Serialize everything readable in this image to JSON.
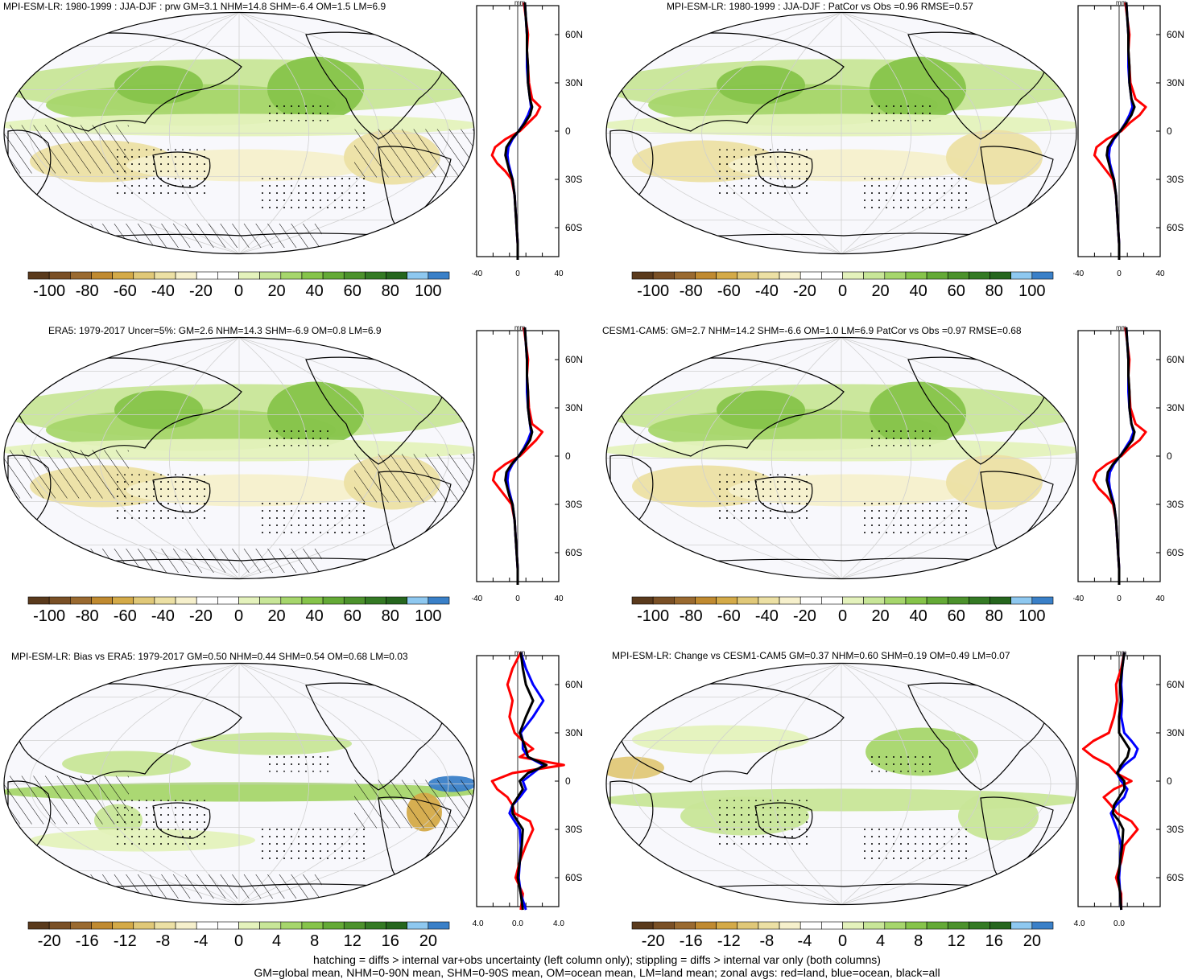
{
  "panels": [
    {
      "title": "MPI-ESM-LR: 1980-1999 : JJA-DJF : prw GM=3.1 NHM=14.8 SHM=-6.4 OM=1.5 LM=6.9",
      "unit": "mm",
      "xticks": [
        "-40",
        "0",
        "40"
      ],
      "xlim": [
        -40,
        40
      ],
      "lat_ticks": [
        "60N",
        "30N",
        "0",
        "30S",
        "60S"
      ],
      "cbar": [
        "-100",
        "-80",
        "-60",
        "-40",
        "-20",
        "0",
        "20",
        "40",
        "60",
        "80",
        "100"
      ]
    },
    {
      "title": "MPI-ESM-LR: 1980-1999 : JJA-DJF : PatCor vs Obs =0.96 RMSE=0.57",
      "unit": "mm",
      "xticks": [
        "-40",
        "0",
        "40"
      ],
      "xlim": [
        -40,
        40
      ],
      "lat_ticks": [
        "60N",
        "30N",
        "0",
        "30S",
        "60S"
      ],
      "cbar": [
        "-100",
        "-80",
        "-60",
        "-40",
        "-20",
        "0",
        "20",
        "40",
        "60",
        "80",
        "100"
      ]
    },
    {
      "title": "ERA5: 1979-2017 Uncer=5%: GM=2.6 NHM=14.3 SHM=-6.9 OM=0.8 LM=6.9",
      "unit": "mm",
      "xticks": [
        "-40",
        "0",
        "40"
      ],
      "xlim": [
        -40,
        40
      ],
      "lat_ticks": [
        "60N",
        "30N",
        "0",
        "30S",
        "60S"
      ],
      "cbar": [
        "-100",
        "-80",
        "-60",
        "-40",
        "-20",
        "0",
        "20",
        "40",
        "60",
        "80",
        "100"
      ]
    },
    {
      "title": "CESM1-CAM5: GM=2.7 NHM=14.2 SHM=-6.6 OM=1.0 LM=6.9 PatCor vs Obs =0.97 RMSE=0.68",
      "unit": "mm",
      "xticks": [
        "-40",
        "0",
        "40"
      ],
      "xlim": [
        -40,
        40
      ],
      "lat_ticks": [
        "60N",
        "30N",
        "0",
        "30S",
        "60S"
      ],
      "cbar": [
        "-100",
        "-80",
        "-60",
        "-40",
        "-20",
        "0",
        "20",
        "40",
        "60",
        "80",
        "100"
      ]
    },
    {
      "title": "MPI-ESM-LR: Bias vs ERA5: 1979-2017 GM=0.50 NHM=0.44 SHM=0.54 OM=0.68 LM=0.03",
      "unit": "mm",
      "xticks": [
        "-4.0",
        "0.0",
        "4.0"
      ],
      "xlim": [
        -4,
        4
      ],
      "lat_ticks": [
        "60N",
        "30N",
        "0",
        "30S",
        "60S"
      ],
      "cbar": [
        "-20",
        "-16",
        "-12",
        "-8",
        "-4",
        "0",
        "4",
        "8",
        "12",
        "16",
        "20"
      ]
    },
    {
      "title": "MPI-ESM-LR: Change vs CESM1-CAM5 GM=0.37 NHM=0.60 SHM=0.19 OM=0.49 LM=0.07",
      "unit": "mm",
      "xticks": [
        "-4.0",
        "0.0"
      ],
      "xlim": [
        -4,
        4
      ],
      "lat_ticks": [
        "60N",
        "30N",
        "0",
        "30S",
        "60S"
      ],
      "cbar": [
        "-20",
        "-16",
        "-12",
        "-8",
        "-4",
        "0",
        "4",
        "8",
        "12",
        "16",
        "20"
      ]
    }
  ],
  "colors": {
    "palette": [
      "#5a3a1c",
      "#7a5026",
      "#9a6a30",
      "#c08a30",
      "#d4aa48",
      "#e0c878",
      "#ece0a4",
      "#f6f0cc",
      "#ffffff",
      "#ffffff",
      "#e4f2bc",
      "#c8e698",
      "#a6d66c",
      "#86c44a",
      "#64aa36",
      "#4c922c",
      "#347a24",
      "#26661e",
      "#8ec8f0",
      "#3a80c8"
    ],
    "land_line": "#000000",
    "zonal_land": "#ff0000",
    "zonal_ocean": "#0000ff",
    "zonal_all": "#000000"
  },
  "chart_data": [
    {
      "type": "line",
      "panel": 1,
      "y_lat": [
        80,
        70,
        60,
        50,
        40,
        30,
        20,
        15,
        10,
        5,
        0,
        -5,
        -10,
        -15,
        -20,
        -25,
        -30,
        -40,
        -50,
        -60,
        -70,
        -80
      ],
      "series": [
        {
          "color": "red",
          "values": [
            6,
            8,
            10,
            9,
            10,
            11,
            14,
            22,
            18,
            10,
            2,
            -12,
            -22,
            -25,
            -20,
            -12,
            -6,
            -3,
            -2,
            -1,
            0,
            0
          ]
        },
        {
          "color": "blue",
          "values": [
            7,
            8,
            9,
            9,
            9,
            10,
            12,
            13,
            10,
            6,
            1,
            -5,
            -9,
            -10,
            -9,
            -7,
            -5,
            -3,
            -2,
            -1,
            0,
            0
          ]
        },
        {
          "color": "black",
          "values": [
            7,
            8,
            9,
            9,
            10,
            10,
            12,
            14,
            12,
            7,
            1,
            -6,
            -11,
            -12,
            -10,
            -8,
            -5,
            -3,
            -2,
            -1,
            0,
            0
          ]
        }
      ]
    },
    {
      "type": "line",
      "panel": 2,
      "y_lat": [
        80,
        70,
        60,
        50,
        40,
        30,
        20,
        15,
        10,
        5,
        0,
        -5,
        -10,
        -15,
        -20,
        -25,
        -30,
        -40,
        -50,
        -60,
        -70,
        -80
      ],
      "series": [
        {
          "color": "red",
          "values": [
            6,
            8,
            10,
            9,
            10,
            11,
            16,
            26,
            20,
            10,
            2,
            -12,
            -22,
            -24,
            -18,
            -12,
            -6,
            -3,
            -2,
            -1,
            0,
            0
          ]
        },
        {
          "color": "blue",
          "values": [
            7,
            8,
            9,
            9,
            9,
            10,
            12,
            13,
            10,
            6,
            1,
            -5,
            -9,
            -10,
            -9,
            -7,
            -5,
            -3,
            -2,
            -1,
            0,
            0
          ]
        },
        {
          "color": "black",
          "values": [
            7,
            8,
            9,
            9,
            10,
            10,
            12,
            15,
            12,
            7,
            1,
            -6,
            -11,
            -12,
            -10,
            -8,
            -5,
            -3,
            -2,
            -1,
            0,
            0
          ]
        }
      ]
    },
    {
      "type": "line",
      "panel": 3,
      "y_lat": [
        80,
        70,
        60,
        50,
        40,
        30,
        20,
        15,
        10,
        5,
        0,
        -5,
        -10,
        -15,
        -20,
        -25,
        -30,
        -40,
        -50,
        -60,
        -70,
        -80
      ],
      "series": [
        {
          "color": "red",
          "values": [
            6,
            8,
            10,
            9,
            10,
            11,
            14,
            24,
            18,
            10,
            2,
            -12,
            -22,
            -24,
            -18,
            -12,
            -6,
            -3,
            -2,
            -1,
            0,
            0
          ]
        },
        {
          "color": "blue",
          "values": [
            7,
            8,
            9,
            9,
            9,
            10,
            12,
            13,
            10,
            6,
            1,
            -5,
            -9,
            -10,
            -9,
            -7,
            -5,
            -3,
            -2,
            -1,
            0,
            0
          ]
        },
        {
          "color": "black",
          "values": [
            7,
            8,
            9,
            9,
            10,
            10,
            12,
            14,
            12,
            7,
            1,
            -6,
            -11,
            -12,
            -10,
            -8,
            -5,
            -3,
            -2,
            -1,
            0,
            0
          ]
        }
      ]
    },
    {
      "type": "line",
      "panel": 4,
      "y_lat": [
        80,
        70,
        60,
        50,
        40,
        30,
        20,
        15,
        10,
        5,
        0,
        -5,
        -10,
        -15,
        -20,
        -25,
        -30,
        -40,
        -50,
        -60,
        -70,
        -80
      ],
      "series": [
        {
          "color": "red",
          "values": [
            6,
            8,
            10,
            9,
            10,
            11,
            16,
            26,
            20,
            10,
            2,
            -12,
            -22,
            -25,
            -20,
            -12,
            -6,
            -3,
            -2,
            -1,
            0,
            0
          ]
        },
        {
          "color": "blue",
          "values": [
            7,
            8,
            9,
            9,
            9,
            10,
            12,
            14,
            11,
            6,
            1,
            -5,
            -9,
            -10,
            -9,
            -7,
            -5,
            -3,
            -2,
            -1,
            0,
            0
          ]
        },
        {
          "color": "black",
          "values": [
            7,
            8,
            9,
            9,
            10,
            10,
            12,
            15,
            13,
            7,
            1,
            -6,
            -11,
            -12,
            -10,
            -8,
            -5,
            -3,
            -2,
            -1,
            0,
            0
          ]
        }
      ]
    },
    {
      "type": "line",
      "panel": 5,
      "y_lat": [
        80,
        70,
        60,
        50,
        40,
        30,
        25,
        20,
        15,
        10,
        5,
        0,
        -5,
        -10,
        -15,
        -20,
        -25,
        -30,
        -40,
        -50,
        -60,
        -70,
        -80
      ],
      "series": [
        {
          "color": "red",
          "values": [
            0.3,
            -0.5,
            -1.0,
            -0.5,
            -0.8,
            -0.3,
            0.5,
            1.5,
            0.2,
            4.5,
            -0.5,
            -2.5,
            -2.0,
            -1.0,
            -0.5,
            -0.3,
            1.2,
            1.5,
            0.8,
            0.2,
            -0.2,
            0.5,
            0.3
          ]
        },
        {
          "color": "blue",
          "values": [
            0.3,
            0.8,
            1.5,
            2.5,
            1.5,
            0.3,
            0.5,
            0.5,
            1.0,
            2.5,
            1.5,
            0.5,
            0.8,
            0.2,
            -0.5,
            -0.8,
            -0.3,
            0.2,
            0.3,
            0.2,
            0.1,
            0.3,
            0.8
          ]
        },
        {
          "color": "black",
          "values": [
            0.3,
            0.5,
            0.8,
            1.5,
            0.8,
            0.2,
            0.5,
            0.8,
            1.0,
            2.8,
            1.0,
            0.2,
            0.5,
            0.0,
            -0.5,
            -0.5,
            0.0,
            0.5,
            0.4,
            0.2,
            0.0,
            0.3,
            0.5
          ]
        }
      ]
    },
    {
      "type": "line",
      "panel": 6,
      "y_lat": [
        80,
        70,
        60,
        50,
        40,
        30,
        25,
        20,
        15,
        10,
        5,
        0,
        -5,
        -10,
        -15,
        -20,
        -25,
        -30,
        -40,
        -50,
        -60,
        -70,
        -80
      ],
      "series": [
        {
          "color": "red",
          "values": [
            0.5,
            0.2,
            -0.3,
            -0.2,
            -0.5,
            -1.0,
            -2.5,
            -3.5,
            -2.5,
            -1.0,
            -0.3,
            1.2,
            -0.5,
            -1.5,
            -0.8,
            -0.2,
            1.2,
            1.8,
            0.5,
            0.2,
            -0.3,
            0.2,
            0.2
          ]
        },
        {
          "color": "blue",
          "values": [
            0.5,
            0.3,
            0.2,
            0.3,
            0.2,
            0.5,
            1.2,
            1.8,
            1.5,
            0.5,
            -0.2,
            0.2,
            0.8,
            0.5,
            -0.3,
            -0.8,
            -0.5,
            -0.2,
            0.2,
            0.1,
            0.0,
            0.1,
            0.2
          ]
        },
        {
          "color": "black",
          "values": [
            0.5,
            0.3,
            0.1,
            0.2,
            0.0,
            0.0,
            0.5,
            1.0,
            0.8,
            0.2,
            -0.2,
            0.5,
            0.5,
            0.0,
            -0.5,
            -0.6,
            0.0,
            0.4,
            0.3,
            0.1,
            -0.1,
            0.1,
            0.2
          ]
        }
      ]
    }
  ],
  "footer": {
    "line1": "hatching = diffs > internal var+obs uncertainty (left column only); stippling = diffs > internal var only (both columns)",
    "line2": "GM=global mean, NHM=0-90N mean, SHM=0-90S mean, OM=ocean mean, LM=land mean; zonal avgs: red=land, blue=ocean, black=all"
  }
}
